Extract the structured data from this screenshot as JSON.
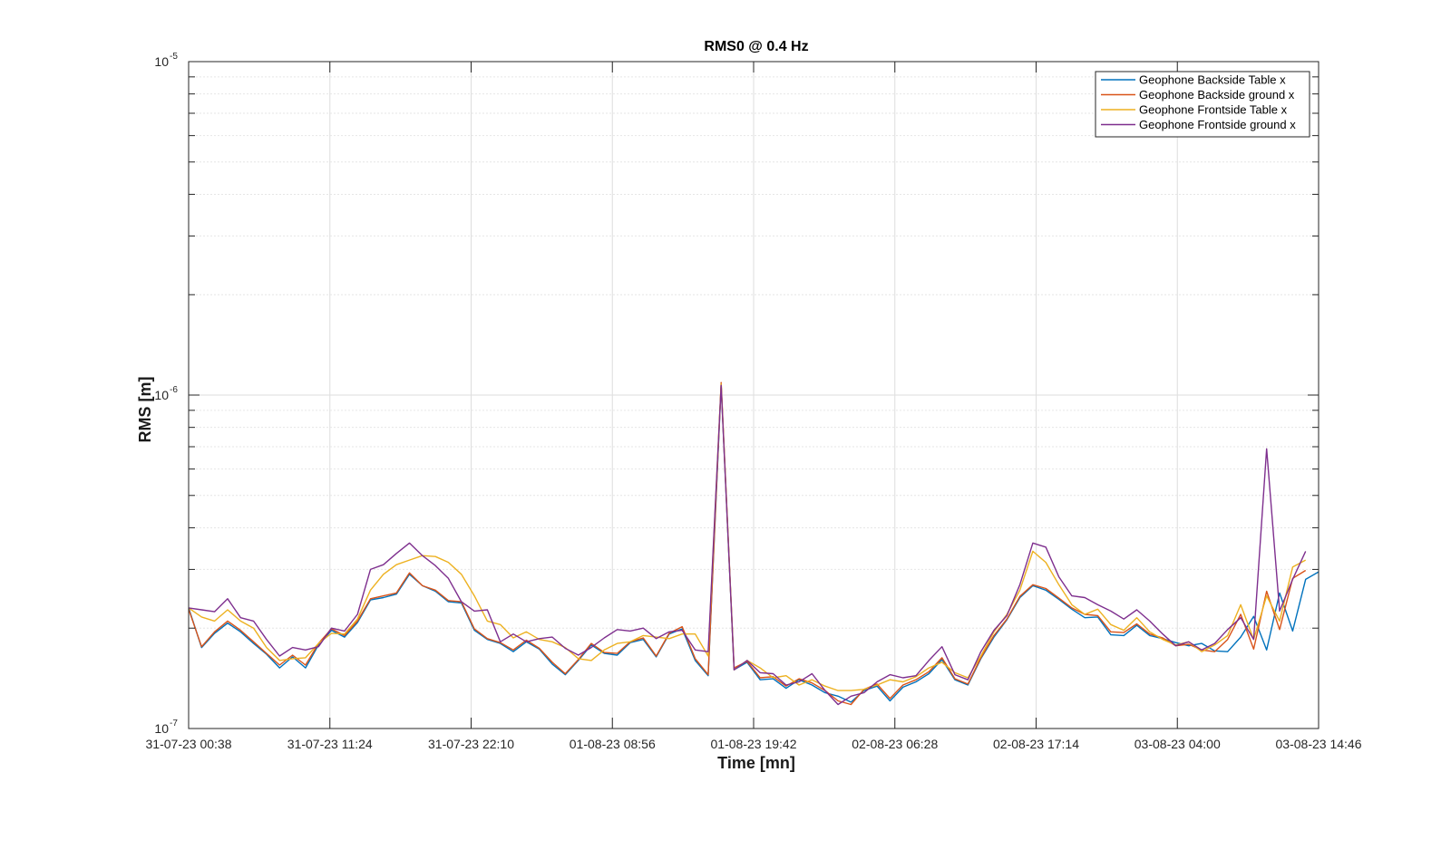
{
  "chart_data": {
    "type": "line",
    "title": "RMS0 @ 0.4 Hz",
    "xlabel": "Time [mn]",
    "ylabel": "RMS [m]",
    "yscale": "log",
    "ylim": [
      1e-07,
      1e-05
    ],
    "yticks": [
      {
        "value": 1e-07,
        "base": "10",
        "exp": "-7"
      },
      {
        "value": 1e-06,
        "base": "10",
        "exp": "-6"
      },
      {
        "value": 1e-05,
        "base": "10",
        "exp": "-5"
      }
    ],
    "xlim": [
      "31-07-23 00:38",
      "03-08-23 14:46"
    ],
    "xticks": [
      "31-07-23 00:38",
      "31-07-23 11:24",
      "31-07-23 22:10",
      "01-08-23 08:56",
      "01-08-23 19:42",
      "02-08-23 06:28",
      "02-08-23 17:14",
      "03-08-23 04:00",
      "03-08-23 14:46"
    ],
    "grid": true,
    "legend": "top-right",
    "x_start": "31-07-23 00:38",
    "x_step": "57 min",
    "series": [
      {
        "name": "Geophone Backside Table x",
        "color": "#0072BD",
        "values": [
          2.3e-07,
          1.75e-07,
          1.93e-07,
          2.07e-07,
          1.95e-07,
          1.8e-07,
          1.67e-07,
          1.52e-07,
          1.64e-07,
          1.52e-07,
          1.78e-07,
          1.97e-07,
          1.88e-07,
          2.08e-07,
          2.43e-07,
          2.47e-07,
          2.53e-07,
          2.9e-07,
          2.68e-07,
          2.58e-07,
          2.4e-07,
          2.38e-07,
          1.97e-07,
          1.85e-07,
          1.8e-07,
          1.7e-07,
          1.82e-07,
          1.73e-07,
          1.56e-07,
          1.45e-07,
          1.6e-07,
          1.78e-07,
          1.68e-07,
          1.66e-07,
          1.81e-07,
          1.85e-07,
          1.64e-07,
          1.92e-07,
          1.99e-07,
          1.6e-07,
          1.44e-07,
          1.07e-06,
          1.5e-07,
          1.58e-07,
          1.4e-07,
          1.41e-07,
          1.32e-07,
          1.4e-07,
          1.35e-07,
          1.28e-07,
          1.25e-07,
          1.2e-07,
          1.3e-07,
          1.34e-07,
          1.21e-07,
          1.33e-07,
          1.38e-07,
          1.46e-07,
          1.61e-07,
          1.4e-07,
          1.35e-07,
          1.62e-07,
          1.88e-07,
          2.12e-07,
          2.47e-07,
          2.68e-07,
          2.6e-07,
          2.44e-07,
          2.28e-07,
          2.15e-07,
          2.16e-07,
          1.91e-07,
          1.9e-07,
          2.04e-07,
          1.9e-07,
          1.86e-07,
          1.81e-07,
          1.77e-07,
          1.8e-07,
          1.71e-07,
          1.7e-07,
          1.88e-07,
          2.17e-07,
          1.72e-07,
          2.55e-07,
          1.96e-07,
          2.8e-07,
          2.95e-07
        ]
      },
      {
        "name": "Geophone Backside ground x",
        "color": "#D95319",
        "values": [
          2.28e-07,
          1.76e-07,
          1.95e-07,
          2.1e-07,
          1.97e-07,
          1.82e-07,
          1.68e-07,
          1.55e-07,
          1.66e-07,
          1.55e-07,
          1.8e-07,
          1.99e-07,
          1.9e-07,
          2.1e-07,
          2.45e-07,
          2.5e-07,
          2.55e-07,
          2.93e-07,
          2.68e-07,
          2.6e-07,
          2.42e-07,
          2.4e-07,
          1.99e-07,
          1.86e-07,
          1.81e-07,
          1.72e-07,
          1.84e-07,
          1.74e-07,
          1.58e-07,
          1.46e-07,
          1.61e-07,
          1.8e-07,
          1.69e-07,
          1.68e-07,
          1.82e-07,
          1.87e-07,
          1.65e-07,
          1.93e-07,
          2.02e-07,
          1.62e-07,
          1.45e-07,
          1.09e-06,
          1.52e-07,
          1.59e-07,
          1.42e-07,
          1.43e-07,
          1.34e-07,
          1.41e-07,
          1.37e-07,
          1.3e-07,
          1.21e-07,
          1.18e-07,
          1.31e-07,
          1.36e-07,
          1.23e-07,
          1.35e-07,
          1.4e-07,
          1.48e-07,
          1.63e-07,
          1.41e-07,
          1.36e-07,
          1.63e-07,
          1.9e-07,
          2.13e-07,
          2.49e-07,
          2.7e-07,
          2.63e-07,
          2.46e-07,
          2.3e-07,
          2.2e-07,
          2.18e-07,
          1.95e-07,
          1.94e-07,
          2.06e-07,
          1.92e-07,
          1.87e-07,
          1.77e-07,
          1.79e-07,
          1.72e-07,
          1.7e-07,
          1.85e-07,
          2.2e-07,
          1.73e-07,
          2.58e-07,
          1.98e-07,
          2.82e-07,
          2.98e-07
        ]
      },
      {
        "name": "Geophone Frontside Table x",
        "color": "#EDB120",
        "values": [
          2.3e-07,
          2.16e-07,
          2.1e-07,
          2.27e-07,
          2.1e-07,
          2e-07,
          1.75e-07,
          1.6e-07,
          1.62e-07,
          1.63e-07,
          1.8e-07,
          1.93e-07,
          1.92e-07,
          2.13e-07,
          2.6e-07,
          2.9e-07,
          3.1e-07,
          3.2e-07,
          3.3e-07,
          3.28e-07,
          3.15e-07,
          2.9e-07,
          2.5e-07,
          2.1e-07,
          2.05e-07,
          1.87e-07,
          1.95e-07,
          1.85e-07,
          1.82e-07,
          1.75e-07,
          1.62e-07,
          1.6e-07,
          1.72e-07,
          1.8e-07,
          1.82e-07,
          1.9e-07,
          1.88e-07,
          1.86e-07,
          1.92e-07,
          1.92e-07,
          1.65e-07,
          1.08e-06,
          1.5e-07,
          1.6e-07,
          1.52e-07,
          1.42e-07,
          1.44e-07,
          1.35e-07,
          1.4e-07,
          1.34e-07,
          1.3e-07,
          1.3e-07,
          1.31e-07,
          1.35e-07,
          1.4e-07,
          1.38e-07,
          1.43e-07,
          1.52e-07,
          1.58e-07,
          1.47e-07,
          1.42e-07,
          1.65e-07,
          1.95e-07,
          2.2e-07,
          2.6e-07,
          3.4e-07,
          3.15e-07,
          2.7e-07,
          2.35e-07,
          2.2e-07,
          2.28e-07,
          2.05e-07,
          1.97e-07,
          2.15e-07,
          1.95e-07,
          1.85e-07,
          1.78e-07,
          1.82e-07,
          1.7e-07,
          1.78e-07,
          1.9e-07,
          2.35e-07,
          1.85e-07,
          2.5e-07,
          2.1e-07,
          3.05e-07,
          3.2e-07
        ]
      },
      {
        "name": "Geophone Frontside ground x",
        "color": "#7E2F8E",
        "values": [
          2.3e-07,
          2.27e-07,
          2.24e-07,
          2.45e-07,
          2.15e-07,
          2.1e-07,
          1.85e-07,
          1.65e-07,
          1.75e-07,
          1.72e-07,
          1.76e-07,
          2e-07,
          1.96e-07,
          2.2e-07,
          3e-07,
          3.1e-07,
          3.35e-07,
          3.6e-07,
          3.3e-07,
          3.08e-07,
          2.82e-07,
          2.4e-07,
          2.25e-07,
          2.27e-07,
          1.82e-07,
          1.92e-07,
          1.82e-07,
          1.86e-07,
          1.88e-07,
          1.74e-07,
          1.66e-07,
          1.75e-07,
          1.87e-07,
          1.98e-07,
          1.96e-07,
          2e-07,
          1.86e-07,
          1.95e-07,
          1.97e-07,
          1.72e-07,
          1.7e-07,
          1.07e-06,
          1.5e-07,
          1.6e-07,
          1.47e-07,
          1.46e-07,
          1.35e-07,
          1.38e-07,
          1.46e-07,
          1.3e-07,
          1.18e-07,
          1.25e-07,
          1.28e-07,
          1.38e-07,
          1.45e-07,
          1.42e-07,
          1.44e-07,
          1.6e-07,
          1.76e-07,
          1.45e-07,
          1.4e-07,
          1.7e-07,
          1.97e-07,
          2.18e-07,
          2.7e-07,
          3.6e-07,
          3.5e-07,
          2.85e-07,
          2.5e-07,
          2.47e-07,
          2.35e-07,
          2.25e-07,
          2.13e-07,
          2.27e-07,
          2.1e-07,
          1.92e-07,
          1.77e-07,
          1.82e-07,
          1.72e-07,
          1.8e-07,
          1.98e-07,
          2.15e-07,
          1.85e-07,
          6.9e-07,
          2.25e-07,
          2.8e-07,
          3.4e-07
        ]
      }
    ]
  }
}
